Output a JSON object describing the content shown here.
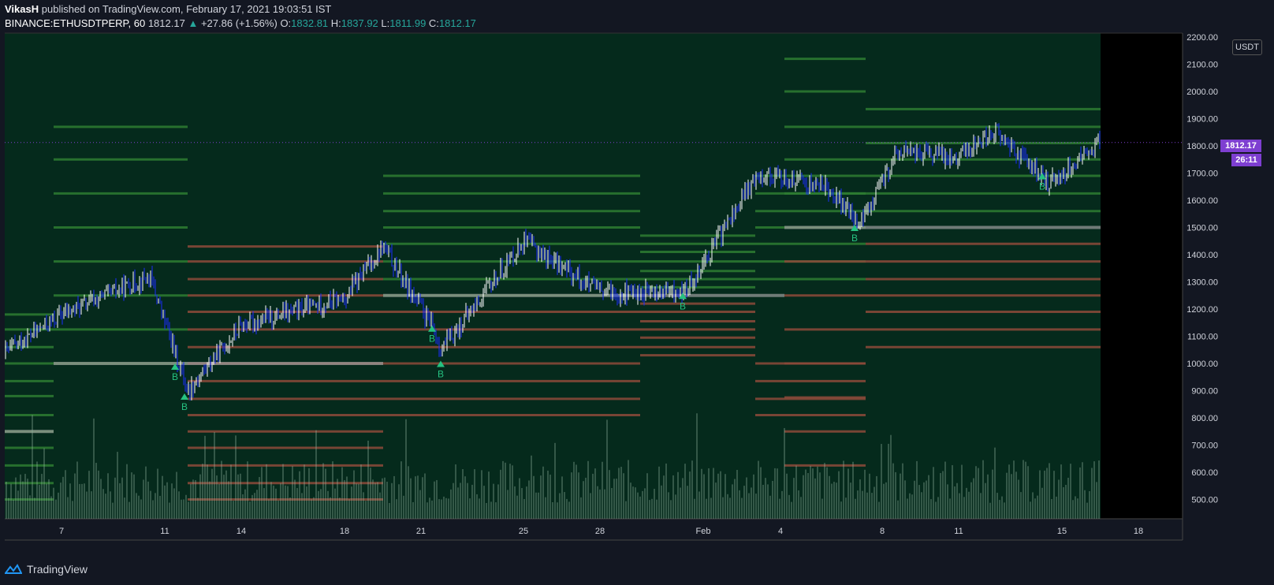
{
  "header": {
    "author": "VikasH",
    "published": " published on TradingView.com, February 17, 2021 19:03:51 IST",
    "symbol": "BINANCE:ETHUSDTPERP, 60",
    "last": "1812.17",
    "change": "+27.86 (+1.56%)",
    "o_label": "O:",
    "o_value": "1832.81",
    "h_label": "H:",
    "h_value": "1837.92",
    "l_label": "L:",
    "l_value": "1811.99",
    "c_label": "C:",
    "c_value": "1812.17"
  },
  "price_scale": {
    "currency": "USDT",
    "last_price_tag": "1812.17",
    "countdown_tag": "26:11"
  },
  "footer": {
    "brand": "TradingView"
  },
  "colors": {
    "pane_bg": "#052a1c",
    "green_level": "#2e7d32",
    "red_level": "#8d4a3a",
    "grey_level": "#9e9e9e",
    "candle_up": "#ffffff",
    "candle_down": "#1a2cff",
    "buy_signal": "#26c281",
    "last_price": "#7e3fd1"
  },
  "chart_data": {
    "type": "line",
    "title": "",
    "y_axis": {
      "min": 500,
      "max": 2200,
      "ticks": [
        500,
        600,
        700,
        800,
        900,
        1000,
        1100,
        1200,
        1300,
        1400,
        1500,
        1600,
        1700,
        1800,
        1900,
        2000,
        2100,
        2200
      ]
    },
    "x_ticks": [
      "7",
      "11",
      "14",
      "18",
      "21",
      "25",
      "28",
      "Feb",
      "4",
      "8",
      "11",
      "15",
      "18"
    ],
    "series": [
      {
        "values_by_day": [
          {
            "day": "7",
            "price": 1180
          },
          {
            "day": "11",
            "price": 1320
          },
          {
            "day": "11",
            "price": 1000
          },
          {
            "day": "14",
            "price": 1140
          },
          {
            "day": "18",
            "price": 1240
          },
          {
            "day": "21",
            "price": 1380
          },
          {
            "day": "21",
            "price": 1120
          },
          {
            "day": "25",
            "price": 1440
          },
          {
            "day": "28",
            "price": 1260
          },
          {
            "day": "Feb",
            "price": 1280
          },
          {
            "day": "4",
            "price": 1660
          },
          {
            "day": "8",
            "price": 1560
          },
          {
            "day": "11",
            "price": 1800
          },
          {
            "day": "15",
            "price": 1680
          },
          {
            "day": "18",
            "price": 1812.17
          }
        ]
      }
    ],
    "buy_signals": [
      {
        "date": "11",
        "price": 1000,
        "label": "B"
      },
      {
        "date": "11",
        "price": 890,
        "label": "B"
      },
      {
        "date": "21",
        "price": 1140,
        "label": "B"
      },
      {
        "date": "21",
        "price": 1010,
        "label": "B"
      },
      {
        "date": "Feb",
        "price": 1260,
        "label": "B"
      },
      {
        "date": "8",
        "price": 1510,
        "label": "B"
      },
      {
        "date": "15",
        "price": 1700,
        "label": "B"
      }
    ]
  }
}
